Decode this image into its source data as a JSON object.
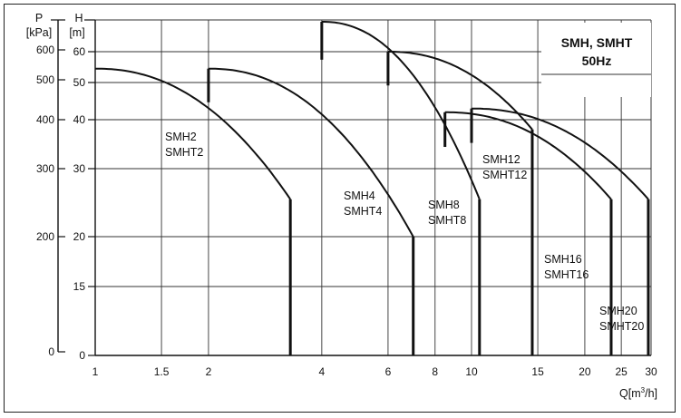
{
  "chart_data": {
    "type": "line",
    "title": "SMH, SMHT",
    "subtitle": "50Hz",
    "xlabel": "Q[m³/h]",
    "xlabel_parts": {
      "base": "Q[m",
      "sup": "3",
      "tail": "/h]"
    },
    "ylabel_left": {
      "symbol": "P",
      "unit": "[kPa]"
    },
    "ylabel_right": {
      "symbol": "H",
      "unit": "[m]"
    },
    "x_scale": "log",
    "y_scale": "nonlinear",
    "xlim": [
      1,
      30
    ],
    "x_ticks": [
      {
        "v": 1,
        "label": "1"
      },
      {
        "v": 1.5,
        "label": "1.5"
      },
      {
        "v": 2,
        "label": "2"
      },
      {
        "v": 4,
        "label": "4"
      },
      {
        "v": 6,
        "label": "6"
      },
      {
        "v": 8,
        "label": "8"
      },
      {
        "v": 10,
        "label": "10"
      },
      {
        "v": 15,
        "label": "15"
      },
      {
        "v": 20,
        "label": "20"
      },
      {
        "v": 25,
        "label": "25"
      },
      {
        "v": 30,
        "label": "30"
      }
    ],
    "h_ticks": [
      {
        "v": 0,
        "label": "0"
      },
      {
        "v": 15,
        "label": "15"
      },
      {
        "v": 20,
        "label": "20"
      },
      {
        "v": 30,
        "label": "30"
      },
      {
        "v": 40,
        "label": "40"
      },
      {
        "v": 50,
        "label": "50"
      },
      {
        "v": 60,
        "label": "60"
      }
    ],
    "p_ticks": [
      {
        "v": 0,
        "label": "0"
      },
      {
        "v": 200,
        "label": "200"
      },
      {
        "v": 300,
        "label": "300"
      },
      {
        "v": 400,
        "label": "400"
      },
      {
        "v": 500,
        "label": "500"
      },
      {
        "v": 600,
        "label": "600"
      }
    ],
    "grid": true,
    "legend_position": "top-right",
    "series": [
      {
        "labels": [
          "SMH2",
          "SMHT2"
        ],
        "q_min": 1,
        "h_max": 54.5,
        "q_max": 3.3,
        "h_end": 25.5
      },
      {
        "labels": [
          "SMH4",
          "SMHT4"
        ],
        "q_min": 2,
        "h_max": 54.5,
        "q_max": 7.0,
        "h_end": 20
      },
      {
        "labels": [
          "SMH8",
          "SMHT8"
        ],
        "q_min": 4,
        "h_max": 70,
        "q_max": 10.5,
        "h_end": 25.5
      },
      {
        "labels": [
          "SMH12",
          "SMHT12"
        ],
        "q_min": 6,
        "h_max": 60,
        "q_max": 14.5,
        "h_end": 38
      },
      {
        "labels": [
          "SMH16",
          "SMHT16"
        ],
        "q_min": 8.5,
        "h_max": 42,
        "q_max": 23.5,
        "h_end": 25.5
      },
      {
        "labels": [
          "SMH20",
          "SMHT20"
        ],
        "q_min": 10,
        "h_max": 43,
        "q_max": 29.5,
        "h_end": 25.5
      }
    ]
  }
}
